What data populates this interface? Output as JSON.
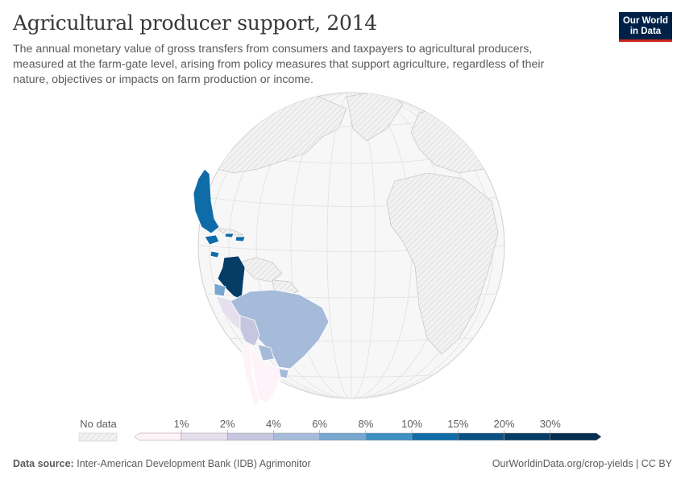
{
  "header": {
    "title": "Agricultural producer support, 2014",
    "subtitle": "The annual monetary value of gross transfers from consumers and taxpayers to agricultural producers, measured at the farm-gate level, arising from policy measures that support agriculture, regardless of their nature, objectives or impacts on farm production or income."
  },
  "logo": {
    "line1": "Our World",
    "line2": "in Data"
  },
  "legend": {
    "no_data_label": "No data",
    "bins": [
      {
        "label": "1%",
        "color": "#fdf3f8"
      },
      {
        "label": "2%",
        "color": "#e6e0ee"
      },
      {
        "label": "4%",
        "color": "#c7c6e0"
      },
      {
        "label": "6%",
        "color": "#a6bbd9"
      },
      {
        "label": "8%",
        "color": "#77a6cf"
      },
      {
        "label": "10%",
        "color": "#3f8fc1"
      },
      {
        "label": "15%",
        "color": "#0f6ca8"
      },
      {
        "label": "20%",
        "color": "#0b5284"
      },
      {
        "label": "30%",
        "color": "#063d66"
      },
      {
        "label": "",
        "color": "#052e50"
      }
    ]
  },
  "map_data": {
    "projection": "orthographic globe centered on the Atlantic",
    "countries": [
      {
        "name": "Mexico",
        "bin": "15%"
      },
      {
        "name": "Jamaica",
        "bin": "15%"
      },
      {
        "name": "Dominican Republic",
        "bin": "15%"
      },
      {
        "name": "Honduras",
        "bin": "15%"
      },
      {
        "name": "Colombia",
        "bin": "20%"
      },
      {
        "name": "Ecuador",
        "bin": "8%"
      },
      {
        "name": "Peru",
        "bin": "2%"
      },
      {
        "name": "Bolivia",
        "bin": "4%"
      },
      {
        "name": "Brazil",
        "bin": "6%"
      },
      {
        "name": "Paraguay",
        "bin": "6%"
      },
      {
        "name": "Uruguay",
        "bin": "6%"
      },
      {
        "name": "Chile",
        "bin": "1%"
      },
      {
        "name": "Argentina",
        "bin": "1%"
      }
    ]
  },
  "footer": {
    "source_label": "Data source:",
    "source_text": "Inter-American Development Bank (IDB) Agrimonitor",
    "right_text": "OurWorldinData.org/crop-yields | CC BY"
  },
  "colors": {
    "ocean": "#f7f7f7",
    "no_data": "#efefef",
    "border": "#bdbdbd"
  }
}
